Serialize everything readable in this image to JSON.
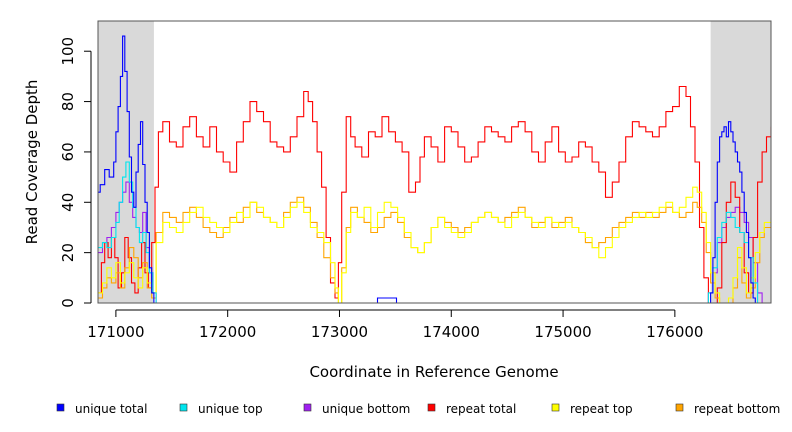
{
  "chart_data": {
    "type": "line",
    "title": "",
    "xlabel": "Coordinate in Reference Genome",
    "ylabel": "Read Coverage Depth",
    "xlim": [
      170840,
      176860
    ],
    "ylim": [
      0,
      112
    ],
    "xticks": [
      171000,
      172000,
      173000,
      174000,
      175000,
      176000
    ],
    "xtick_labels": [
      "171000",
      "172000",
      "173000",
      "174000",
      "175000",
      "176000"
    ],
    "yticks": [
      0,
      20,
      40,
      60,
      80,
      100
    ],
    "ytick_labels": [
      "0",
      "20",
      "40",
      "60",
      "80",
      "100"
    ],
    "shaded_regions": [
      [
        170840,
        171340
      ],
      [
        176320,
        176860
      ]
    ],
    "legend_position": "bottom",
    "series": [
      {
        "name": "unique total",
        "color": "#0000ff",
        "x": [
          170840,
          170860,
          170900,
          170940,
          170980,
          171000,
          171020,
          171040,
          171060,
          171080,
          171100,
          171120,
          171140,
          171160,
          171180,
          171200,
          171220,
          171240,
          171260,
          171280,
          171300,
          171320,
          171340,
          171360,
          171380,
          171400,
          173330,
          173340,
          173500,
          173510,
          176160,
          176180,
          176200,
          176220,
          176240,
          176260,
          176280,
          176300,
          176320,
          176340,
          176360,
          176380,
          176400,
          176420,
          176440,
          176460,
          176480,
          176500,
          176520,
          176540,
          176560,
          176580,
          176600,
          176620,
          176640,
          176660,
          176680,
          176700,
          176720,
          176740,
          176760,
          176780,
          176800,
          176860
        ],
        "y": [
          44,
          47,
          53,
          50,
          56,
          68,
          78,
          90,
          106,
          92,
          76,
          58,
          44,
          38,
          52,
          63,
          72,
          55,
          40,
          28,
          14,
          4,
          0,
          0,
          0,
          0,
          0,
          2,
          2,
          0,
          0,
          0,
          0,
          0,
          0,
          0,
          0,
          0,
          4,
          18,
          40,
          56,
          66,
          68,
          70,
          66,
          72,
          68,
          64,
          60,
          56,
          52,
          44,
          36,
          28,
          18,
          8,
          2,
          0,
          0,
          0,
          0,
          0,
          0
        ]
      },
      {
        "name": "unique top",
        "color": "#00e5ee",
        "x": [
          170840,
          170880,
          170920,
          170960,
          171000,
          171030,
          171060,
          171090,
          171120,
          171150,
          171180,
          171210,
          171240,
          171270,
          171300,
          171330,
          171360,
          171400,
          176180,
          176240,
          176300,
          176340,
          176380,
          176420,
          176460,
          176500,
          176540,
          176580,
          176620,
          176660,
          176700,
          176740,
          176780,
          176860
        ],
        "y": [
          22,
          24,
          22,
          26,
          32,
          40,
          50,
          56,
          48,
          38,
          30,
          24,
          28,
          20,
          12,
          4,
          0,
          0,
          0,
          0,
          4,
          14,
          26,
          32,
          36,
          34,
          30,
          28,
          24,
          18,
          8,
          0,
          0,
          0
        ]
      },
      {
        "name": "unique bottom",
        "color": "#a020f0",
        "x": [
          170840,
          170880,
          170920,
          170960,
          171000,
          171030,
          171060,
          171090,
          171120,
          171150,
          171180,
          171210,
          171240,
          171270,
          171300,
          171330,
          171360,
          171400,
          176180,
          176240,
          176300,
          176340,
          176380,
          176420,
          176460,
          176500,
          176540,
          176580,
          176620,
          176660,
          176700,
          176740,
          176780,
          176860
        ],
        "y": [
          20,
          24,
          26,
          30,
          36,
          40,
          44,
          48,
          40,
          34,
          30,
          28,
          36,
          22,
          12,
          4,
          0,
          0,
          0,
          0,
          4,
          12,
          24,
          30,
          34,
          36,
          38,
          36,
          32,
          26,
          16,
          4,
          0,
          0
        ]
      },
      {
        "name": "repeat total",
        "color": "#ff0000",
        "x": [
          170840,
          170870,
          170900,
          170930,
          170960,
          170990,
          171020,
          171050,
          171080,
          171110,
          171140,
          171170,
          171200,
          171230,
          171260,
          171290,
          171320,
          171350,
          171380,
          171420,
          171480,
          171540,
          171600,
          171660,
          171720,
          171780,
          171840,
          171900,
          171960,
          172020,
          172080,
          172140,
          172200,
          172260,
          172320,
          172380,
          172440,
          172500,
          172560,
          172620,
          172680,
          172720,
          172760,
          172800,
          172840,
          172880,
          172920,
          172960,
          172990,
          173020,
          173060,
          173100,
          173140,
          173200,
          173260,
          173320,
          173380,
          173440,
          173500,
          173560,
          173620,
          173680,
          173720,
          173760,
          173820,
          173880,
          173940,
          174000,
          174060,
          174120,
          174180,
          174240,
          174300,
          174360,
          174420,
          174480,
          174540,
          174600,
          174660,
          174720,
          174780,
          174840,
          174900,
          174960,
          175020,
          175080,
          175140,
          175200,
          175260,
          175320,
          175380,
          175440,
          175500,
          175560,
          175620,
          175680,
          175740,
          175800,
          175860,
          175920,
          175980,
          176040,
          176100,
          176140,
          176180,
          176220,
          176260,
          176300,
          176340,
          176380,
          176420,
          176460,
          176500,
          176540,
          176580,
          176620,
          176660,
          176700,
          176740,
          176780,
          176820,
          176860
        ],
        "y": [
          4,
          16,
          24,
          18,
          26,
          18,
          6,
          12,
          26,
          18,
          8,
          4,
          14,
          24,
          12,
          6,
          24,
          46,
          68,
          72,
          64,
          62,
          70,
          74,
          66,
          62,
          70,
          60,
          56,
          52,
          64,
          72,
          80,
          76,
          72,
          64,
          62,
          60,
          66,
          74,
          84,
          80,
          72,
          60,
          46,
          26,
          8,
          2,
          16,
          44,
          74,
          66,
          62,
          58,
          68,
          66,
          74,
          68,
          64,
          60,
          44,
          48,
          58,
          66,
          62,
          56,
          70,
          68,
          62,
          56,
          58,
          64,
          70,
          68,
          66,
          64,
          70,
          72,
          68,
          60,
          56,
          64,
          70,
          60,
          56,
          58,
          64,
          62,
          56,
          52,
          42,
          48,
          56,
          66,
          72,
          70,
          68,
          66,
          70,
          76,
          78,
          86,
          82,
          70,
          56,
          30,
          10,
          0,
          0,
          6,
          24,
          40,
          48,
          42,
          28,
          12,
          4,
          26,
          48,
          60,
          66,
          70
        ]
      },
      {
        "name": "repeat top",
        "color": "#ffff00",
        "x": [
          170840,
          170880,
          170920,
          170960,
          171000,
          171040,
          171080,
          171120,
          171160,
          171200,
          171240,
          171280,
          171320,
          171360,
          171420,
          171480,
          171540,
          171600,
          171660,
          171720,
          171780,
          171840,
          171900,
          171960,
          172020,
          172080,
          172140,
          172200,
          172260,
          172320,
          172380,
          172440,
          172500,
          172560,
          172620,
          172680,
          172740,
          172800,
          172860,
          172920,
          172960,
          172990,
          173020,
          173060,
          173100,
          173160,
          173220,
          173280,
          173340,
          173400,
          173460,
          173520,
          173580,
          173640,
          173700,
          173760,
          173820,
          173880,
          173940,
          174000,
          174060,
          174120,
          174180,
          174240,
          174300,
          174360,
          174420,
          174480,
          174540,
          174600,
          174660,
          174720,
          174780,
          174840,
          174900,
          174960,
          175020,
          175080,
          175140,
          175200,
          175260,
          175320,
          175380,
          175440,
          175500,
          175560,
          175620,
          175680,
          175740,
          175800,
          175860,
          175920,
          175980,
          176040,
          176100,
          176160,
          176200,
          176240,
          176280,
          176320,
          176360,
          176400,
          176440,
          176480,
          176520,
          176560,
          176600,
          176640,
          176680,
          176720,
          176760,
          176800,
          176860
        ],
        "y": [
          4,
          8,
          14,
          10,
          16,
          8,
          12,
          16,
          10,
          6,
          14,
          8,
          4,
          24,
          32,
          30,
          28,
          32,
          36,
          38,
          34,
          32,
          30,
          28,
          32,
          36,
          34,
          40,
          38,
          34,
          32,
          30,
          34,
          38,
          40,
          36,
          30,
          28,
          24,
          16,
          6,
          0,
          12,
          28,
          36,
          34,
          38,
          30,
          36,
          40,
          38,
          34,
          28,
          22,
          20,
          24,
          30,
          34,
          30,
          28,
          26,
          28,
          32,
          34,
          36,
          34,
          32,
          30,
          34,
          36,
          34,
          32,
          30,
          34,
          32,
          30,
          32,
          30,
          28,
          26,
          22,
          18,
          22,
          26,
          30,
          32,
          34,
          36,
          34,
          36,
          38,
          40,
          36,
          38,
          42,
          46,
          44,
          36,
          24,
          12,
          4,
          0,
          0,
          2,
          10,
          22,
          14,
          4,
          10,
          20,
          28,
          32,
          34
        ]
      },
      {
        "name": "repeat bottom",
        "color": "#ffa500",
        "x": [
          170840,
          170880,
          170920,
          170960,
          171000,
          171040,
          171080,
          171120,
          171160,
          171200,
          171240,
          171280,
          171320,
          171360,
          171420,
          171480,
          171540,
          171600,
          171660,
          171720,
          171780,
          171840,
          171900,
          171960,
          172020,
          172080,
          172140,
          172200,
          172260,
          172320,
          172380,
          172440,
          172500,
          172560,
          172620,
          172680,
          172740,
          172800,
          172860,
          172920,
          172960,
          172990,
          173020,
          173060,
          173100,
          173160,
          173220,
          173280,
          173340,
          173400,
          173460,
          173520,
          173580,
          173640,
          173700,
          173760,
          173820,
          173880,
          173940,
          174000,
          174060,
          174120,
          174180,
          174240,
          174300,
          174360,
          174420,
          174480,
          174540,
          174600,
          174660,
          174720,
          174780,
          174840,
          174900,
          174960,
          175020,
          175080,
          175140,
          175200,
          175260,
          175320,
          175380,
          175440,
          175500,
          175560,
          175620,
          175680,
          175740,
          175800,
          175860,
          175920,
          175980,
          176040,
          176100,
          176160,
          176200,
          176240,
          176280,
          176320,
          176360,
          176400,
          176440,
          176480,
          176520,
          176560,
          176600,
          176640,
          176680,
          176720,
          176760,
          176800,
          176860
        ],
        "y": [
          2,
          6,
          10,
          8,
          12,
          6,
          14,
          22,
          18,
          10,
          16,
          6,
          2,
          28,
          36,
          34,
          32,
          36,
          38,
          34,
          30,
          28,
          26,
          30,
          34,
          32,
          38,
          40,
          36,
          34,
          32,
          30,
          36,
          40,
          42,
          38,
          32,
          26,
          18,
          10,
          4,
          0,
          14,
          30,
          38,
          34,
          32,
          28,
          30,
          34,
          36,
          32,
          26,
          22,
          20,
          24,
          30,
          34,
          32,
          30,
          28,
          30,
          32,
          34,
          36,
          34,
          32,
          34,
          36,
          38,
          34,
          30,
          32,
          34,
          30,
          32,
          34,
          30,
          28,
          24,
          22,
          24,
          26,
          30,
          32,
          34,
          36,
          34,
          36,
          34,
          36,
          38,
          36,
          34,
          36,
          40,
          38,
          32,
          20,
          8,
          2,
          0,
          0,
          0,
          6,
          18,
          8,
          2,
          6,
          16,
          26,
          30,
          32
        ]
      }
    ]
  }
}
